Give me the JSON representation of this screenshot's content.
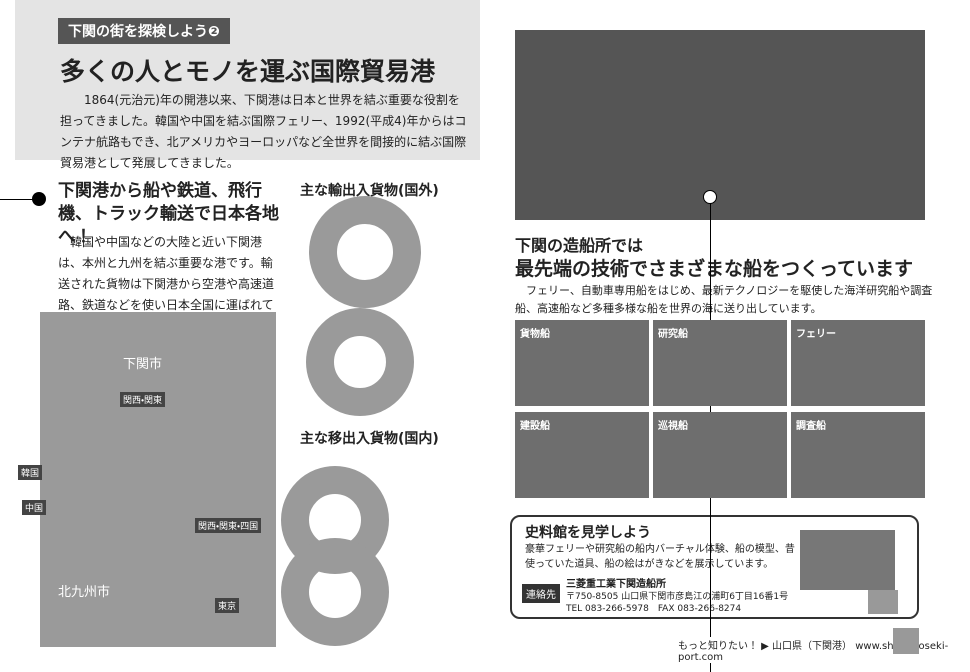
{
  "header": {
    "series_tag": "下関の街を探検しよう❷",
    "title": "多くの人とモノを運ぶ国際貿易港",
    "body": "1864(元治元)年の開港以来、下関港は日本と世界を結ぶ重要な役割を担ってきました。韓国や中国を結ぶ国際フェリー、1992(平成4)年からはコンテナ航路もでき、北アメリカやヨーロッパなど全世界を間接的に結ぶ国際貿易港として発展してきました。"
  },
  "transport": {
    "heading": "下関港から船や鉄道、飛行機、トラック輸送で日本各地へ！",
    "body": "韓国や中国などの大陸と近い下関港は、本州と九州を結ぶ重要な港です。輸送された貨物は下関港から空港や高速道路、鉄道などを使い日本全国に運ばれていきます。"
  },
  "charts": {
    "international_title": "主な輸出入貨物(国外)",
    "domestic_title": "主な移出入貨物(国内)"
  },
  "map": {
    "labels": [
      "下関市",
      "北九州市",
      "韓国",
      "中国",
      "関西・関東",
      "関西・関東・四国",
      "東京"
    ]
  },
  "shipbuilding": {
    "heading": "下関の造船所では",
    "title": "最先端の技術でさまざまな船をつくっています",
    "body": "フェリー、自動車専用船をはじめ、最新テクノロジーを駆使した海洋研究船や調査船、高速船など多種多様な船を世界の海に送り出しています。",
    "ships": [
      "貨物船",
      "研究船",
      "フェリー",
      "建設船",
      "巡視船",
      "調査船"
    ]
  },
  "museum": {
    "title": "史料館を見学しよう",
    "body": "豪華フェリーや研究船の船内バーチャル体験、船の模型、昔使っていた道具、船の絵はがきなどを展示しています。",
    "contact_tag": "連絡先",
    "name": "三菱重工業下関造船所",
    "address": "〒750-8505 山口県下関市彦島江の浦町6丁目16番1号",
    "tel": "TEL 083-266-5978　FAX 083-266-8274"
  },
  "footer": {
    "text": "もっと知りたい！ ▶ 山口県（下関港） www.shimonoseki-port.com"
  }
}
